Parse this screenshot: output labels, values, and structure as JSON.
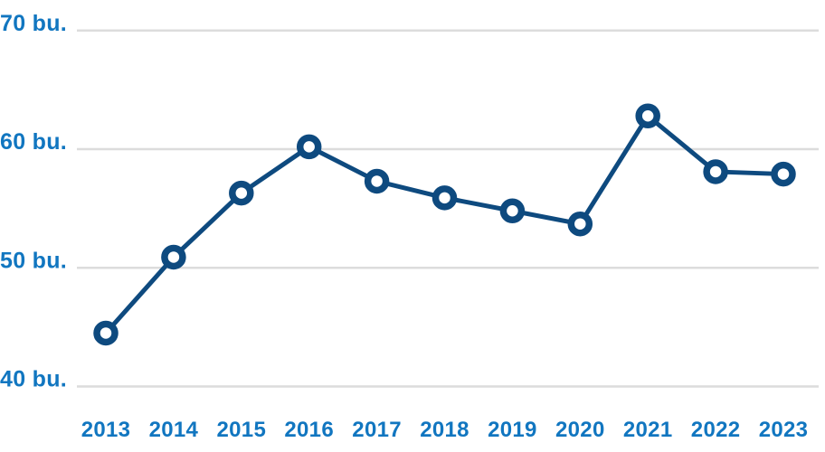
{
  "chart_data": {
    "type": "line",
    "title": "",
    "xlabel": "",
    "ylabel": "",
    "unit": "bu.",
    "categories": [
      "2013",
      "2014",
      "2015",
      "2016",
      "2017",
      "2018",
      "2019",
      "2020",
      "2021",
      "2022",
      "2023"
    ],
    "values": [
      44.5,
      50.9,
      56.3,
      60.2,
      57.3,
      55.9,
      54.8,
      53.7,
      62.8,
      58.1,
      57.9
    ],
    "y_ticks": [
      {
        "value": 70,
        "label": "70 bu."
      },
      {
        "value": 60,
        "label": "60 bu."
      },
      {
        "value": 50,
        "label": "50 bu."
      },
      {
        "value": 40,
        "label": "40 bu."
      }
    ],
    "ylim": [
      40,
      70
    ],
    "grid": true,
    "legend_position": "none",
    "colors": {
      "line": "#0e4a7f",
      "marker_ring": "#0e4a7f",
      "marker_fill": "#ffffff",
      "axis_label": "#1176c0",
      "gridline": "#dcdcdc",
      "background": "#ffffff"
    }
  }
}
